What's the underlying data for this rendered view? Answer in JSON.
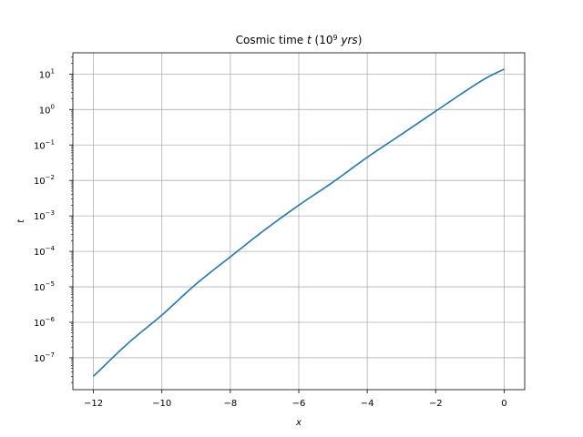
{
  "chart_data": {
    "type": "line",
    "title": "Cosmic time t (10⁹ yrs)",
    "xlabel": "x",
    "ylabel": "t",
    "xlim": [
      -12.6,
      0.6
    ],
    "ylim_log10": [
      -7.9,
      1.6
    ],
    "yscale": "log",
    "grid": true,
    "x_ticks": [
      -12,
      -10,
      -8,
      -6,
      -4,
      -2,
      0
    ],
    "x_tick_labels": [
      "−12",
      "−10",
      "−8",
      "−6",
      "−4",
      "−2",
      "0"
    ],
    "y_tick_exponents": [
      -7,
      -6,
      -5,
      -4,
      -3,
      -2,
      -1,
      0,
      1
    ],
    "line_color": "#1f77b4",
    "series": [
      {
        "x": [
          -12,
          -11,
          -10,
          -9,
          -8,
          -7,
          -6,
          -5,
          -4,
          -3,
          -2,
          -1,
          -0.5,
          0
        ],
        "y": [
          3e-08,
          2.5e-07,
          1.6e-06,
          1.2e-05,
          7e-05,
          0.0004,
          0.002,
          0.009,
          0.045,
          0.2,
          0.9,
          4.0,
          8.0,
          13.8
        ]
      }
    ]
  }
}
